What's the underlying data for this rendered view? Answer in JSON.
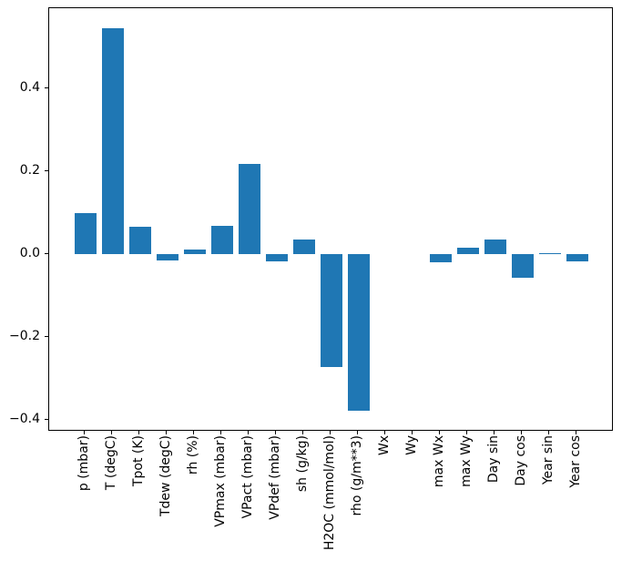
{
  "figure": {
    "background": "#ffffff",
    "spine_color": "#000000",
    "text_color": "#000000"
  },
  "chart_data": {
    "type": "bar",
    "title": "",
    "xlabel": "",
    "ylabel": "",
    "categories": [
      "p (mbar)",
      "T (degC)",
      "Tpot (K)",
      "Tdew (degC)",
      "rh (%)",
      "VPmax (mbar)",
      "VPact (mbar)",
      "VPdef (mbar)",
      "sh (g/kg)",
      "H2OC (mmol/mol)",
      "rho (g/m**3)",
      "Wx",
      "Wy",
      "max Wx",
      "max Wy",
      "Day sin",
      "Day cos",
      "Year sin",
      "Year cos"
    ],
    "values": [
      0.1,
      0.546,
      0.066,
      -0.015,
      0.012,
      0.069,
      0.219,
      -0.016,
      0.036,
      -0.271,
      -0.377,
      0.0,
      0.0,
      -0.018,
      0.017,
      0.036,
      -0.056,
      0.004,
      -0.016
    ],
    "bar_color": "#1f77b4",
    "ylim": [
      -0.428,
      0.595
    ],
    "yticks": [
      0.4,
      0.2,
      0.0,
      -0.2,
      -0.4
    ],
    "ytick_labels": [
      "0.4",
      "0.2",
      "0.0",
      "−0.2",
      "−0.4"
    ],
    "x_tick_rotation_deg": 90,
    "grid": false,
    "legend": null
  }
}
